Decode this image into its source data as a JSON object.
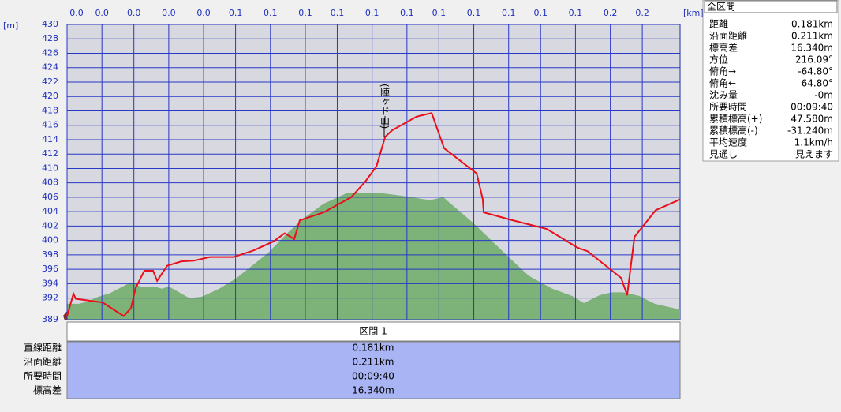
{
  "chart_data": {
    "type": "line",
    "y_unit": "[m]",
    "x_unit": "[km]",
    "annotation": "(陣ヶド山)",
    "xlim": [
      0,
      0.211
    ],
    "ylim": [
      389,
      430
    ],
    "grid": true,
    "xticks": [
      {
        "value": 0,
        "label": "0.0"
      },
      {
        "value": 0.012,
        "label": "0.0"
      },
      {
        "value": 0.023,
        "label": "0.0"
      },
      {
        "value": 0.035,
        "label": "0.0"
      },
      {
        "value": 0.047,
        "label": "0.0"
      },
      {
        "value": 0.058,
        "label": "0.1"
      },
      {
        "value": 0.07,
        "label": "0.1"
      },
      {
        "value": 0.082,
        "label": "0.1"
      },
      {
        "value": 0.093,
        "label": "0.1"
      },
      {
        "value": 0.105,
        "label": "0.1"
      },
      {
        "value": 0.117,
        "label": "0.1"
      },
      {
        "value": 0.128,
        "label": "0.1"
      },
      {
        "value": 0.14,
        "label": "0.1"
      },
      {
        "value": 0.152,
        "label": "0.1"
      },
      {
        "value": 0.163,
        "label": "0.1"
      },
      {
        "value": 0.175,
        "label": "0.1"
      },
      {
        "value": 0.187,
        "label": "0.2"
      },
      {
        "value": 0.198,
        "label": "0.2"
      }
    ],
    "yticks": [
      389,
      392,
      394,
      396,
      398,
      400,
      402,
      404,
      406,
      408,
      410,
      412,
      414,
      416,
      418,
      420,
      422,
      424,
      426,
      428,
      430
    ],
    "series": [
      {
        "color": "#7db279",
        "fill": true,
        "x": [
          0,
          0.0041,
          0.0068,
          0.0109,
          0.0149,
          0.022,
          0.0258,
          0.0301,
          0.0326,
          0.035,
          0.0421,
          0.0465,
          0.0524,
          0.0584,
          0.0693,
          0.076,
          0.0815,
          0.0883,
          0.0964,
          0.1018,
          0.1078,
          0.1154,
          0.1249,
          0.1295,
          0.1399,
          0.1507,
          0.1589,
          0.167,
          0.1738,
          0.1779,
          0.1833,
          0.1874,
          0.1914,
          0.1969,
          0.2023,
          0.211
        ],
        "values": [
          391.2,
          391.2,
          391.5,
          392.2,
          392.7,
          394.2,
          393.5,
          393.6,
          393.3,
          393.6,
          392.0,
          392.2,
          393.3,
          394.8,
          398.3,
          401.1,
          403.1,
          405.1,
          406.6,
          406.6,
          406.6,
          406.2,
          405.6,
          406.0,
          402.4,
          398.2,
          395.1,
          393.3,
          392.3,
          391.3,
          392.4,
          392.8,
          392.8,
          392.3,
          391.2,
          390.4
        ]
      },
      {
        "color": "#e8101a",
        "fill": false,
        "x": [
          0,
          0.0022,
          0.003,
          0.0122,
          0.0195,
          0.022,
          0.0236,
          0.0266,
          0.0296,
          0.031,
          0.0345,
          0.0394,
          0.0437,
          0.0492,
          0.0573,
          0.0641,
          0.0712,
          0.0749,
          0.0782,
          0.0801,
          0.0883,
          0.0978,
          0.1027,
          0.1065,
          0.1095,
          0.1119,
          0.1203,
          0.1255,
          0.1298,
          0.141,
          0.1431,
          0.1434,
          0.1534,
          0.1651,
          0.1757,
          0.1792,
          0.1907,
          0.1928,
          0.1953,
          0.2026,
          0.211
        ],
        "values": [
          389.5,
          392.6,
          391.9,
          391.4,
          389.5,
          390.6,
          393.4,
          395.8,
          395.8,
          394.4,
          396.5,
          397.1,
          397.2,
          397.7,
          397.7,
          398.6,
          399.9,
          401.0,
          400.2,
          402.8,
          403.9,
          406.0,
          408.2,
          410.3,
          414.4,
          415.3,
          417.2,
          417.7,
          412.8,
          409.3,
          405.7,
          403.9,
          402.8,
          401.6,
          399.0,
          398.5,
          394.8,
          392.4,
          400.5,
          404.2,
          405.7
        ]
      }
    ]
  },
  "summary": {
    "title": "全区間",
    "rows": [
      [
        "距離",
        "0.181km"
      ],
      [
        "沿面距離",
        "0.211km"
      ],
      [
        "標高差",
        "16.340m"
      ],
      [
        "方位",
        "216.09°"
      ],
      [
        "俯角→",
        "-64.80°"
      ],
      [
        "俯角←",
        "64.80°"
      ],
      [
        "沈み量",
        "-0m"
      ],
      [
        "所要時間",
        "00:09:40"
      ],
      [
        "累積標高(+)",
        "47.580m"
      ],
      [
        "累積標高(-)",
        "-31.240m"
      ],
      [
        "平均速度",
        "1.1km/h"
      ],
      [
        "見通し",
        "見えます"
      ]
    ]
  },
  "section": {
    "title": "区間 1",
    "rows": [
      [
        "直線距離",
        "0.181km"
      ],
      [
        "沿面距離",
        "0.211km"
      ],
      [
        "所要時間",
        "00:09:40"
      ],
      [
        "標高差",
        "16.340m"
      ]
    ]
  }
}
